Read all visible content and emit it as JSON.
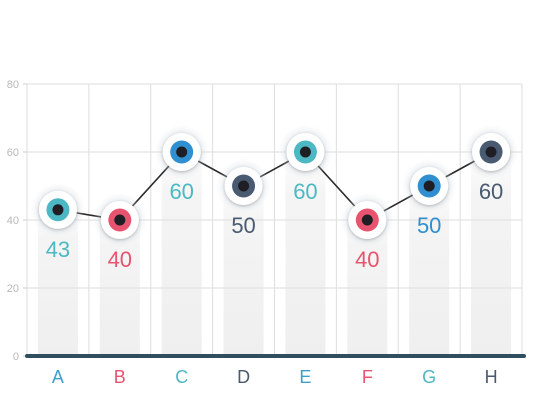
{
  "chart_data": {
    "type": "line",
    "title": "",
    "xlabel": "",
    "ylabel": "",
    "categories": [
      "A",
      "B",
      "C",
      "D",
      "E",
      "F",
      "G",
      "H"
    ],
    "series": [
      {
        "values": [
          43,
          40,
          60,
          50,
          60,
          40,
          50,
          60
        ]
      }
    ],
    "value_labels": [
      "43",
      "40",
      "60",
      "50",
      "60",
      "40",
      "50",
      "60"
    ],
    "ylim": [
      0,
      80
    ],
    "yticks": [
      0,
      20,
      40,
      60,
      80
    ],
    "ytick_labels": [
      "0",
      "20",
      "40",
      "60",
      "80"
    ],
    "grid": true,
    "legend": "none",
    "point_colors": [
      "#4cb8c4",
      "#e8546f",
      "#2f8fd1",
      "#4a5a70",
      "#4cb8c4",
      "#e8546f",
      "#2f8fd1",
      "#4a5a70"
    ],
    "label_colors": [
      "#4cb8c4",
      "#e8546f",
      "#4cb8c4",
      "#4a5a70",
      "#4cb8c4",
      "#e8546f",
      "#2f8fd1",
      "#4a5a70"
    ],
    "category_colors": [
      "#3a9fc9",
      "#e8546f",
      "#4cb8c4",
      "#4a5a70",
      "#3a9fc9",
      "#e8546f",
      "#4cb8c4",
      "#4a5a70"
    ],
    "baseline_color": "#2f4f5f",
    "line_color": "#2a2a2a"
  }
}
